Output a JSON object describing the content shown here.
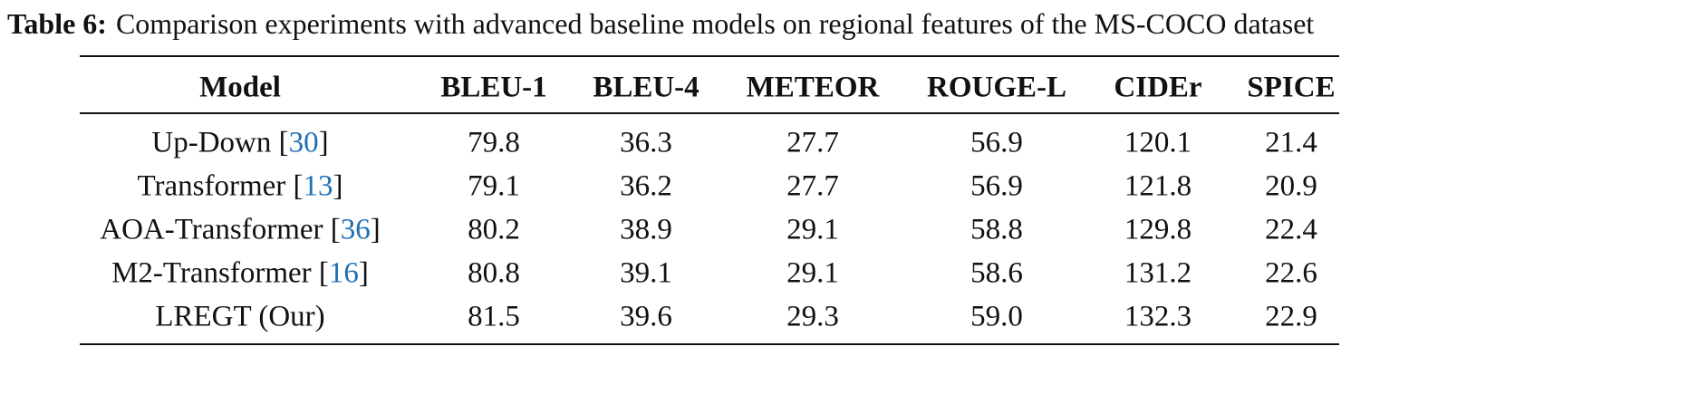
{
  "caption": {
    "label": "Table 6:",
    "text": "Comparison experiments with advanced baseline models on regional features of the MS-COCO dataset"
  },
  "table": {
    "header": [
      "Model",
      "BLEU-1",
      "BLEU-4",
      "METEOR",
      "ROUGE-L",
      "CIDEr",
      "SPICE"
    ],
    "brackets": [
      "[",
      "]"
    ],
    "rows": [
      {
        "model": "Up-Down",
        "ref": "30",
        "values": [
          "79.8",
          "36.3",
          "27.7",
          "56.9",
          "120.1",
          "21.4"
        ]
      },
      {
        "model": "Transformer",
        "ref": "13",
        "values": [
          "79.1",
          "36.2",
          "27.7",
          "56.9",
          "121.8",
          "20.9"
        ]
      },
      {
        "model": "AOA-Transformer",
        "ref": "36",
        "values": [
          "80.2",
          "38.9",
          "29.1",
          "58.8",
          "129.8",
          "22.4"
        ]
      },
      {
        "model": "M2-Transformer",
        "ref": "16",
        "values": [
          "80.8",
          "39.1",
          "29.1",
          "58.6",
          "131.2",
          "22.6"
        ]
      },
      {
        "model": "LREGT (Our)",
        "ref": null,
        "values": [
          "81.5",
          "39.6",
          "29.3",
          "59.0",
          "132.3",
          "22.9"
        ]
      }
    ]
  }
}
